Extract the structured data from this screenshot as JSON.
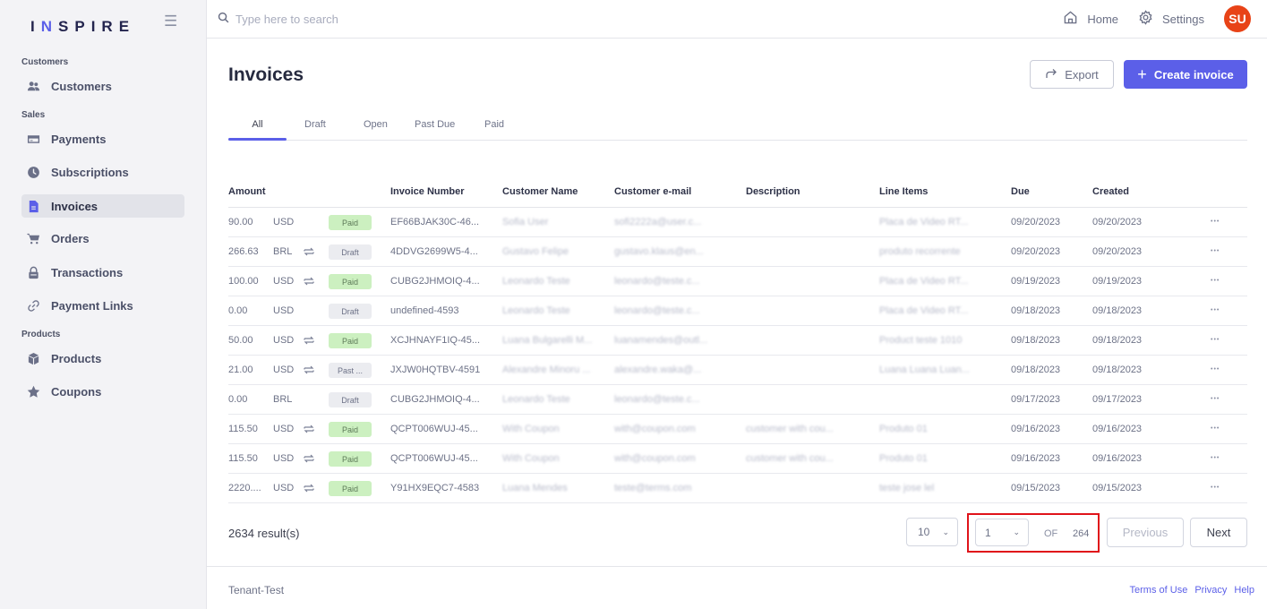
{
  "brand": {
    "logo_text_a": "I",
    "logo_text_n": "N",
    "logo_text_b": "SPIRE"
  },
  "sidebar": {
    "sections": [
      {
        "label": "Customers"
      },
      {
        "label": "Sales"
      },
      {
        "label": "Products"
      }
    ],
    "items": [
      {
        "label": "Customers",
        "icon": "users-icon"
      },
      {
        "label": "Payments",
        "icon": "card-icon"
      },
      {
        "label": "Subscriptions",
        "icon": "clock-icon"
      },
      {
        "label": "Invoices",
        "icon": "document-icon",
        "active": true
      },
      {
        "label": "Orders",
        "icon": "cart-icon"
      },
      {
        "label": "Transactions",
        "icon": "lock-icon"
      },
      {
        "label": "Payment Links",
        "icon": "link-icon"
      },
      {
        "label": "Products",
        "icon": "box-icon"
      },
      {
        "label": "Coupons",
        "icon": "star-icon"
      }
    ]
  },
  "topbar": {
    "search_placeholder": "Type here to search",
    "home_label": "Home",
    "settings_label": "Settings",
    "avatar_initials": "SU",
    "avatar_color": "#e84317"
  },
  "page": {
    "title": "Invoices",
    "export_label": "Export",
    "create_label": "Create invoice",
    "accent_color": "#5b5fe8"
  },
  "tabs": [
    {
      "label": "All",
      "active": true
    },
    {
      "label": "Draft"
    },
    {
      "label": "Open"
    },
    {
      "label": "Past Due"
    },
    {
      "label": "Paid"
    }
  ],
  "table": {
    "columns": [
      "Amount",
      "Invoice Number",
      "Customer Name",
      "Customer e-mail",
      "Description",
      "Line Items",
      "Due",
      "Created"
    ],
    "rows": [
      {
        "amount": "90.00",
        "currency": "USD",
        "recurring": false,
        "status": "Paid",
        "status_type": "paid",
        "invoice": "EF66BJAK30C-46...",
        "customer": "Sofia User",
        "email": "sofi2222a@user.c...",
        "description": "",
        "line_items": "Placa de Video RT...",
        "due": "09/20/2023",
        "created": "09/20/2023"
      },
      {
        "amount": "266.63",
        "currency": "BRL",
        "recurring": true,
        "status": "Draft",
        "status_type": "draft",
        "invoice": "4DDVG2699W5-4...",
        "customer": "Gustavo Felipe",
        "email": "gustavo.klaus@en...",
        "description": "",
        "line_items": "produto recorrente",
        "due": "09/20/2023",
        "created": "09/20/2023"
      },
      {
        "amount": "100.00",
        "currency": "USD",
        "recurring": true,
        "status": "Paid",
        "status_type": "paid",
        "invoice": "CUBG2JHMOIQ-4...",
        "customer": "Leonardo Teste",
        "email": "leonardo@teste.c...",
        "description": "",
        "line_items": "Placa de Video RT...",
        "due": "09/19/2023",
        "created": "09/19/2023"
      },
      {
        "amount": "0.00",
        "currency": "USD",
        "recurring": false,
        "status": "Draft",
        "status_type": "draft",
        "invoice": "undefined-4593",
        "customer": "Leonardo Teste",
        "email": "leonardo@teste.c...",
        "description": "",
        "line_items": "Placa de Video RT...",
        "due": "09/18/2023",
        "created": "09/18/2023"
      },
      {
        "amount": "50.00",
        "currency": "USD",
        "recurring": true,
        "status": "Paid",
        "status_type": "paid",
        "invoice": "XCJHNAYF1IQ-45...",
        "customer": "Luana Bulgarelli M...",
        "email": "luanamendes@outl...",
        "description": "",
        "line_items": "Product teste 1010",
        "due": "09/18/2023",
        "created": "09/18/2023"
      },
      {
        "amount": "21.00",
        "currency": "USD",
        "recurring": true,
        "status": "Past ...",
        "status_type": "past",
        "invoice": "JXJW0HQTBV-4591",
        "customer": "Alexandre Minoru ...",
        "email": "alexandre.waka@...",
        "description": "",
        "line_items": "Luana Luana Luan...",
        "due": "09/18/2023",
        "created": "09/18/2023"
      },
      {
        "amount": "0.00",
        "currency": "BRL",
        "recurring": false,
        "status": "Draft",
        "status_type": "draft",
        "invoice": "CUBG2JHMOIQ-4...",
        "customer": "Leonardo Teste",
        "email": "leonardo@teste.c...",
        "description": "",
        "line_items": "",
        "due": "09/17/2023",
        "created": "09/17/2023"
      },
      {
        "amount": "115.50",
        "currency": "USD",
        "recurring": true,
        "status": "Paid",
        "status_type": "paid",
        "invoice": "QCPT006WUJ-45...",
        "customer": "With Coupon",
        "email": "with@coupon.com",
        "description": "customer with cou...",
        "line_items": "Produto 01",
        "due": "09/16/2023",
        "created": "09/16/2023"
      },
      {
        "amount": "115.50",
        "currency": "USD",
        "recurring": true,
        "status": "Paid",
        "status_type": "paid",
        "invoice": "QCPT006WUJ-45...",
        "customer": "With Coupon",
        "email": "with@coupon.com",
        "description": "customer with cou...",
        "line_items": "Produto 01",
        "due": "09/16/2023",
        "created": "09/16/2023"
      },
      {
        "amount": "2220....",
        "currency": "USD",
        "recurring": true,
        "status": "Paid",
        "status_type": "paid",
        "invoice": "Y91HX9EQC7-4583",
        "customer": "Luana Mendes",
        "email": "teste@terms.com",
        "description": "",
        "line_items": "teste jose lel",
        "due": "09/15/2023",
        "created": "09/15/2023"
      }
    ]
  },
  "pagination": {
    "results_text": "2634 result(s)",
    "page_size": "10",
    "current_page": "1",
    "of_label": "OF",
    "total_pages": "264",
    "previous_label": "Previous",
    "next_label": "Next"
  },
  "footer": {
    "tenant": "Tenant-Test",
    "links": [
      "Terms of Use",
      "Privacy",
      "Help"
    ]
  }
}
